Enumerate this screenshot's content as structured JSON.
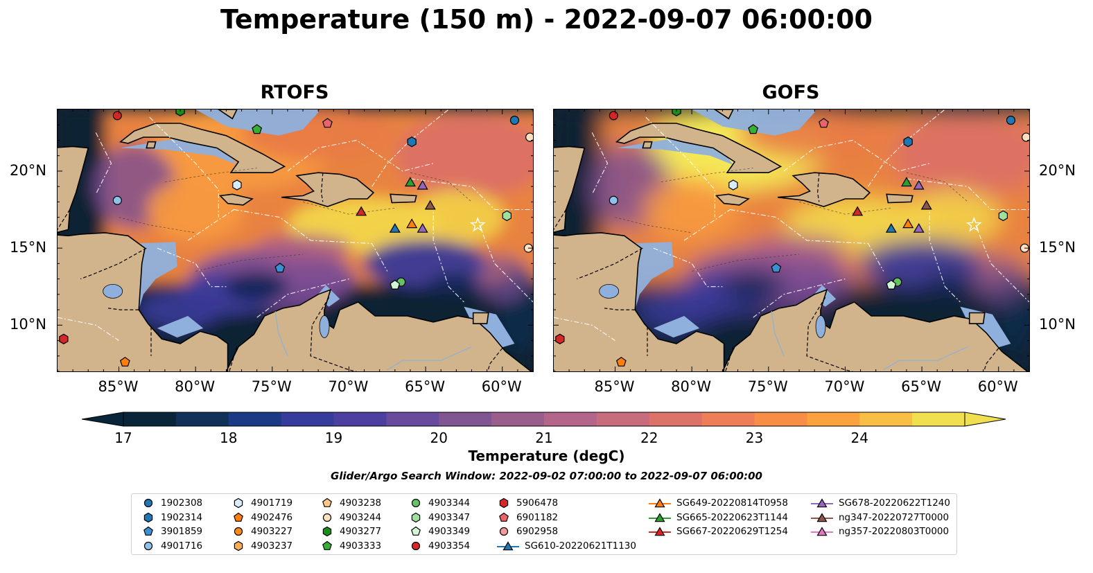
{
  "suptitle": "Temperature (150 m) - 2022-09-07 06:00:00",
  "panels": [
    {
      "title": "RTOFS",
      "variant": "rtofs"
    },
    {
      "title": "GOFS",
      "variant": "gofs"
    }
  ],
  "lon_labels": [
    "85°W",
    "80°W",
    "75°W",
    "70°W",
    "65°W",
    "60°W"
  ],
  "lat_labels": [
    "20°N",
    "15°N",
    "10°N"
  ],
  "colorbar": {
    "ticks": [
      "17",
      "18",
      "19",
      "20",
      "21",
      "22",
      "23",
      "24"
    ],
    "label": "Temperature (degC)",
    "colors": [
      "#09253a",
      "#11305a",
      "#1b3a86",
      "#353c9c",
      "#4d3f9f",
      "#684b9d",
      "#815592",
      "#9a5e8d",
      "#b3658a",
      "#c86b7c",
      "#dd7368",
      "#ed7e57",
      "#f88d45",
      "#fba13d",
      "#f9be46",
      "#f0e04f"
    ]
  },
  "search_window": "Glider/Argo Search Window: 2022-09-02 07:00:00 to 2022-09-07 06:00:00",
  "legend": [
    {
      "label": "1902308",
      "marker": "circle",
      "color": "#1f77b4"
    },
    {
      "label": "1902314",
      "marker": "hexagon",
      "color": "#1f77b4"
    },
    {
      "label": "3901859",
      "marker": "pentagon",
      "color": "#3d8fd0"
    },
    {
      "label": "4901716",
      "marker": "circle",
      "color": "#8ec2ea"
    },
    {
      "label": "4901719",
      "marker": "hexagon",
      "color": "#d8ecfb"
    },
    {
      "label": "4902476",
      "marker": "pentagon",
      "color": "#ff7f0e"
    },
    {
      "label": "4903227",
      "marker": "circle",
      "color": "#ff8c1a"
    },
    {
      "label": "4903237",
      "marker": "hexagon",
      "color": "#ffad55"
    },
    {
      "label": "4903238",
      "marker": "pentagon",
      "color": "#ffc885"
    },
    {
      "label": "4903244",
      "marker": "circle",
      "color": "#ffe0bf"
    },
    {
      "label": "4903277",
      "marker": "hexagon",
      "color": "#1a8c1a"
    },
    {
      "label": "4903333",
      "marker": "pentagon",
      "color": "#35b035"
    },
    {
      "label": "4903344",
      "marker": "circle",
      "color": "#65c265"
    },
    {
      "label": "4903347",
      "marker": "hexagon",
      "color": "#9fe09f"
    },
    {
      "label": "4903349",
      "marker": "pentagon",
      "color": "#d2f5d2"
    },
    {
      "label": "4903354",
      "marker": "circle",
      "color": "#d62728"
    },
    {
      "label": "5906478",
      "marker": "hexagon",
      "color": "#d62728"
    },
    {
      "label": "6901182",
      "marker": "pentagon",
      "color": "#e8636a"
    },
    {
      "label": "6902958",
      "marker": "circle",
      "color": "#f2999b"
    },
    {
      "label": "SG610-20220621T1130",
      "marker": "triangle",
      "color": "#1f77b4"
    },
    {
      "label": "SG649-20220814T0958",
      "marker": "triangle",
      "color": "#ff7f0e"
    },
    {
      "label": "SG665-20220623T1144",
      "marker": "triangle",
      "color": "#2ca02c"
    },
    {
      "label": "SG667-20220629T1254",
      "marker": "triangle",
      "color": "#d62728"
    },
    {
      "label": "SG678-20220622T1240",
      "marker": "triangle",
      "color": "#9467bd"
    },
    {
      "label": "ng347-20220727T0000",
      "marker": "triangle",
      "color": "#8c564b"
    },
    {
      "label": "ng357-20220803T0000",
      "marker": "triangle",
      "color": "#e377c2"
    }
  ],
  "map_extent": {
    "lon": [
      -89,
      -58
    ],
    "lat": [
      7,
      24
    ]
  },
  "observations": [
    {
      "id": "1902308",
      "lon": -59.2,
      "lat": 23.3
    },
    {
      "id": "1902314",
      "lon": -65.9,
      "lat": 21.9
    },
    {
      "id": "3901859",
      "lon": -74.5,
      "lat": 13.7
    },
    {
      "id": "4901716",
      "lon": -85.1,
      "lat": 18.1
    },
    {
      "id": "4901719",
      "lon": -77.3,
      "lat": 19.1
    },
    {
      "id": "4902476",
      "lon": -84.6,
      "lat": 7.6
    },
    {
      "id": "4903244",
      "lon": -58.2,
      "lat": 22.2
    },
    {
      "id": "4903244",
      "lon": -58.3,
      "lat": 15.0
    },
    {
      "id": "4903277",
      "lon": -81.0,
      "lat": 23.9
    },
    {
      "id": "4903333",
      "lon": -76.0,
      "lat": 22.7
    },
    {
      "id": "4903344",
      "lon": -66.6,
      "lat": 12.8
    },
    {
      "id": "4903347",
      "lon": -59.7,
      "lat": 17.1
    },
    {
      "id": "4903349",
      "lon": -67.0,
      "lat": 12.6
    },
    {
      "id": "4903354",
      "lon": -85.1,
      "lat": 23.6
    },
    {
      "id": "5906478",
      "lon": -88.6,
      "lat": 9.1
    },
    {
      "id": "6901182",
      "lon": -71.4,
      "lat": 23.1
    },
    {
      "id": "SG610-20220621T1130",
      "lon": -67.0,
      "lat": 16.3
    },
    {
      "id": "SG649-20220814T0958",
      "lon": -65.9,
      "lat": 16.6
    },
    {
      "id": "SG665-20220623T1144",
      "lon": -66.0,
      "lat": 19.3
    },
    {
      "id": "SG667-20220629T1254",
      "lon": -69.2,
      "lat": 17.4
    },
    {
      "id": "SG678-20220622T1240",
      "lon": -65.2,
      "lat": 19.1
    },
    {
      "id": "SG678-20220622T1240",
      "lon": -65.2,
      "lat": 16.3
    },
    {
      "id": "ng347-20220727T0000",
      "lon": -64.7,
      "lat": 17.8
    }
  ],
  "land_color": "#d2b48c",
  "shelf_color": "#8fb0dc"
}
